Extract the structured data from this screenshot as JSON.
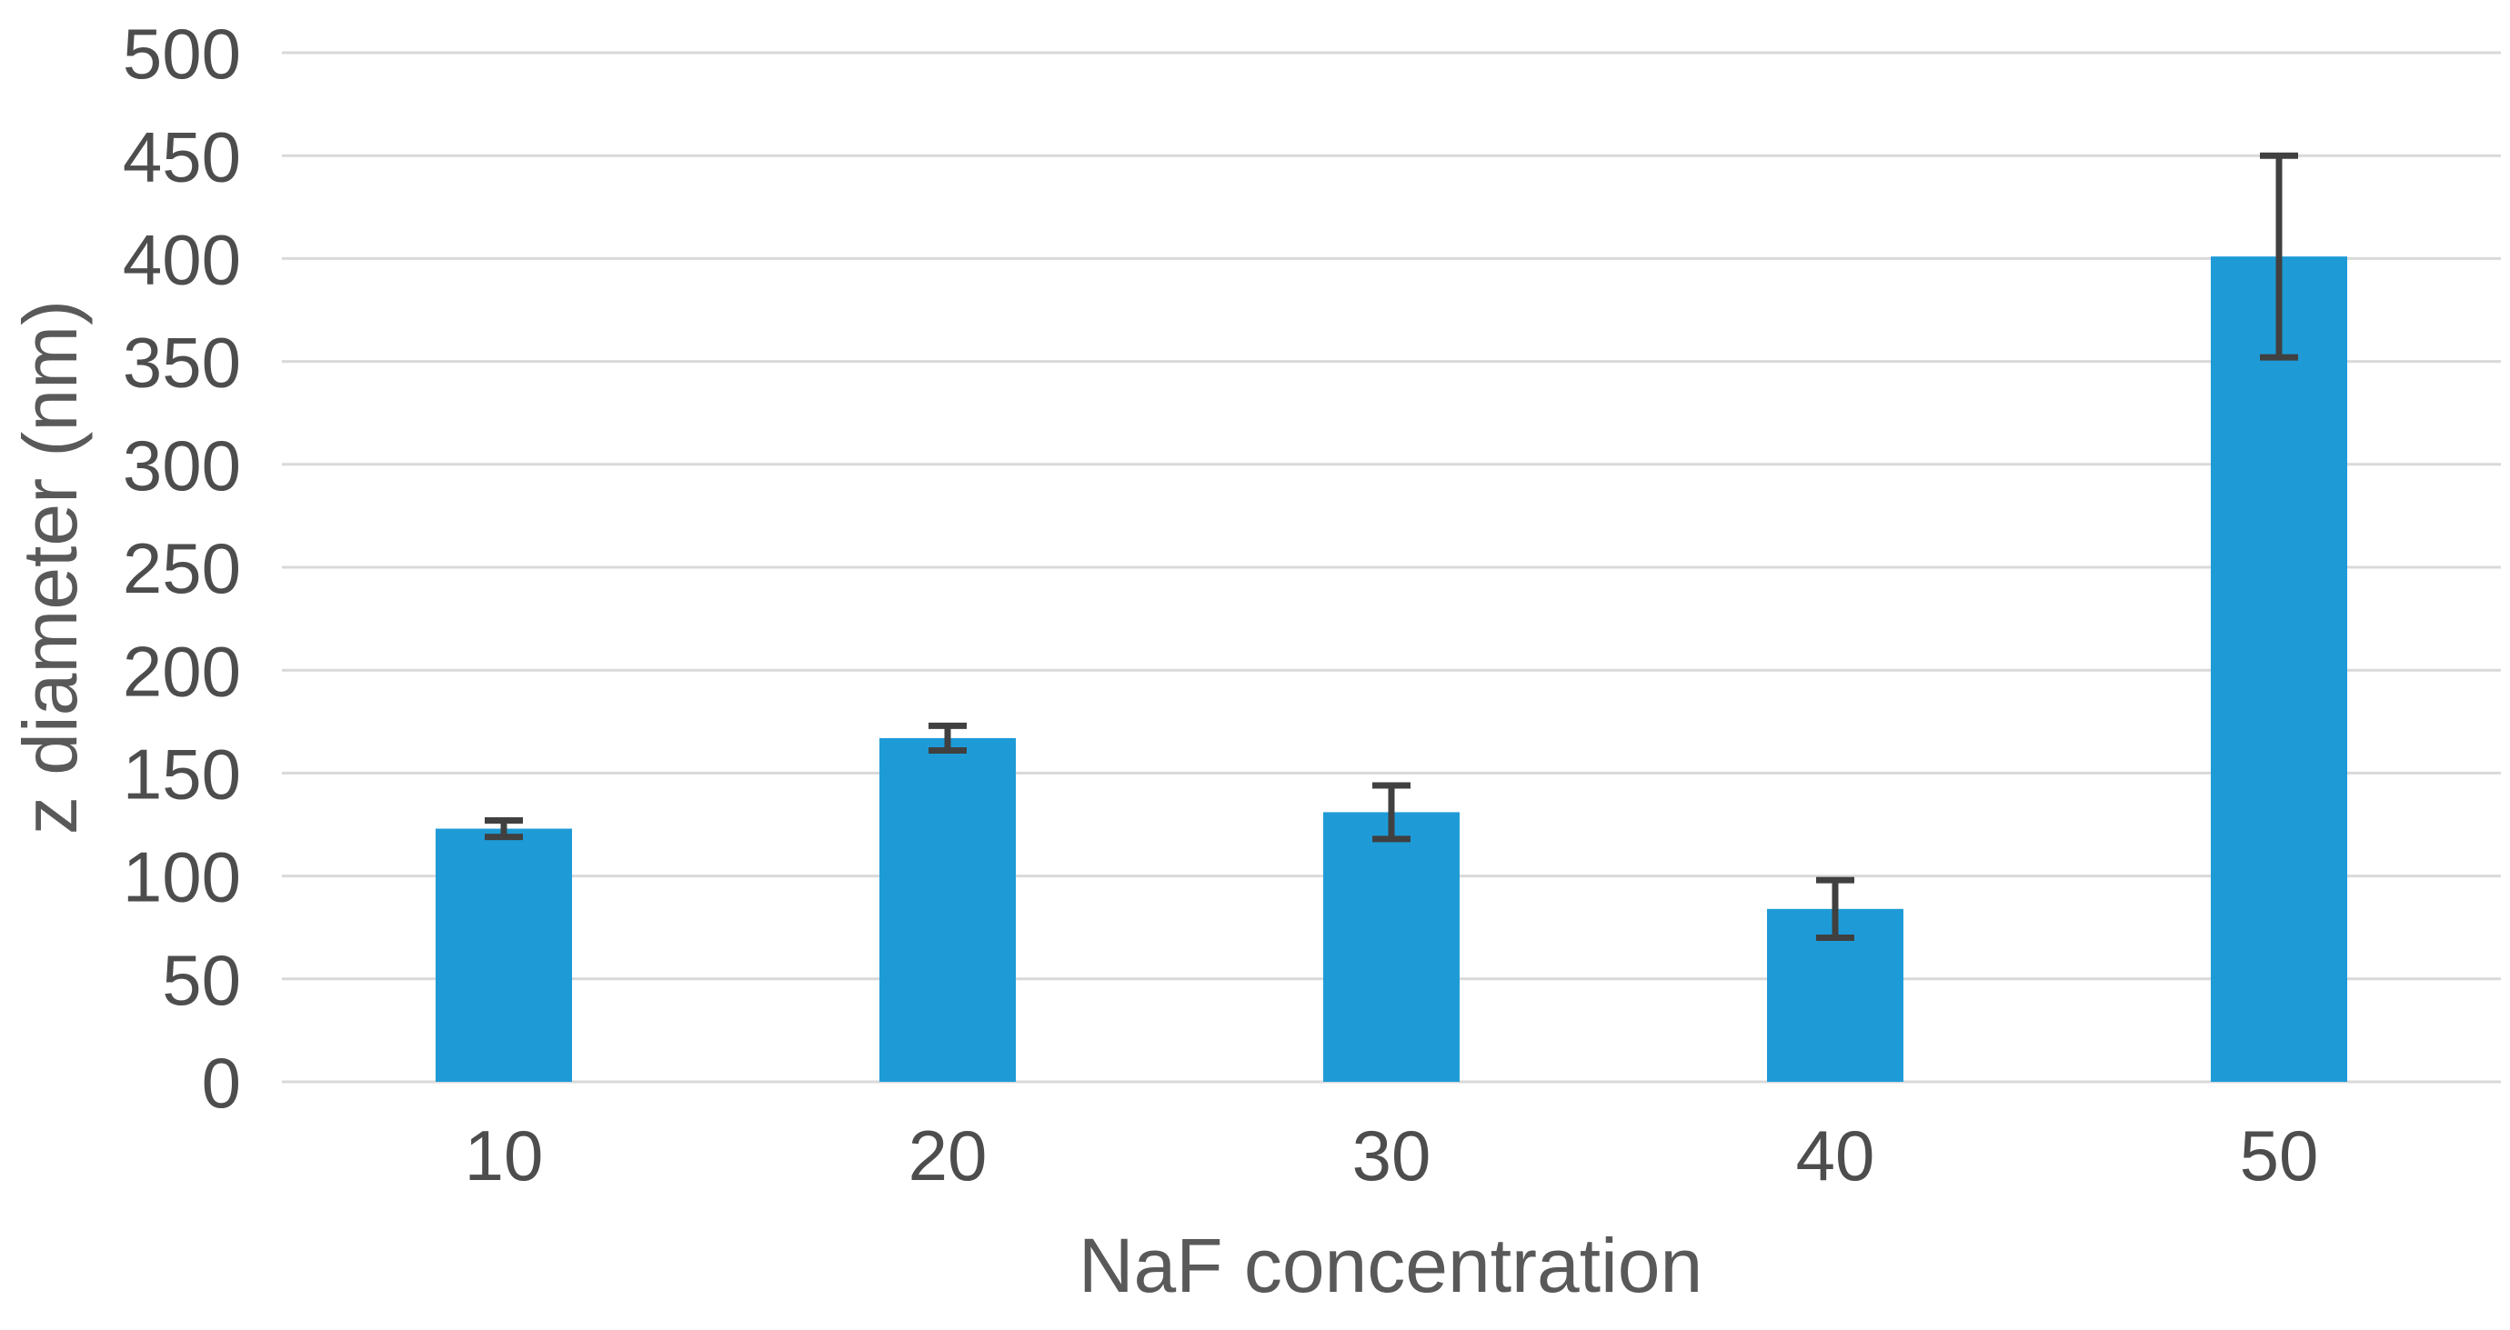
{
  "chart_data": {
    "type": "bar",
    "title": "",
    "xlabel": "NaF concentration",
    "ylabel": "z diameter (nm)",
    "categories": [
      "10",
      "20",
      "30",
      "40",
      "50"
    ],
    "series": [
      {
        "name": "z diameter (nm)",
        "values": [
          123,
          167,
          131,
          84,
          401
        ],
        "errors": [
          4,
          6,
          13,
          14,
          49
        ]
      }
    ],
    "ylim": [
      0,
      500
    ],
    "ytick_step": 50,
    "ytick_labels": [
      "0",
      "50",
      "100",
      "150",
      "200",
      "250",
      "300",
      "350",
      "400",
      "450",
      "500"
    ],
    "grid": "horizontal",
    "legend_position": "none",
    "colors": {
      "bar": "#1e9bd7",
      "error_bar": "#404040",
      "gridline": "#d9d9d9",
      "tick_label": "#4d4d4d",
      "axis_title": "#595959",
      "background": "#ffffff"
    }
  }
}
